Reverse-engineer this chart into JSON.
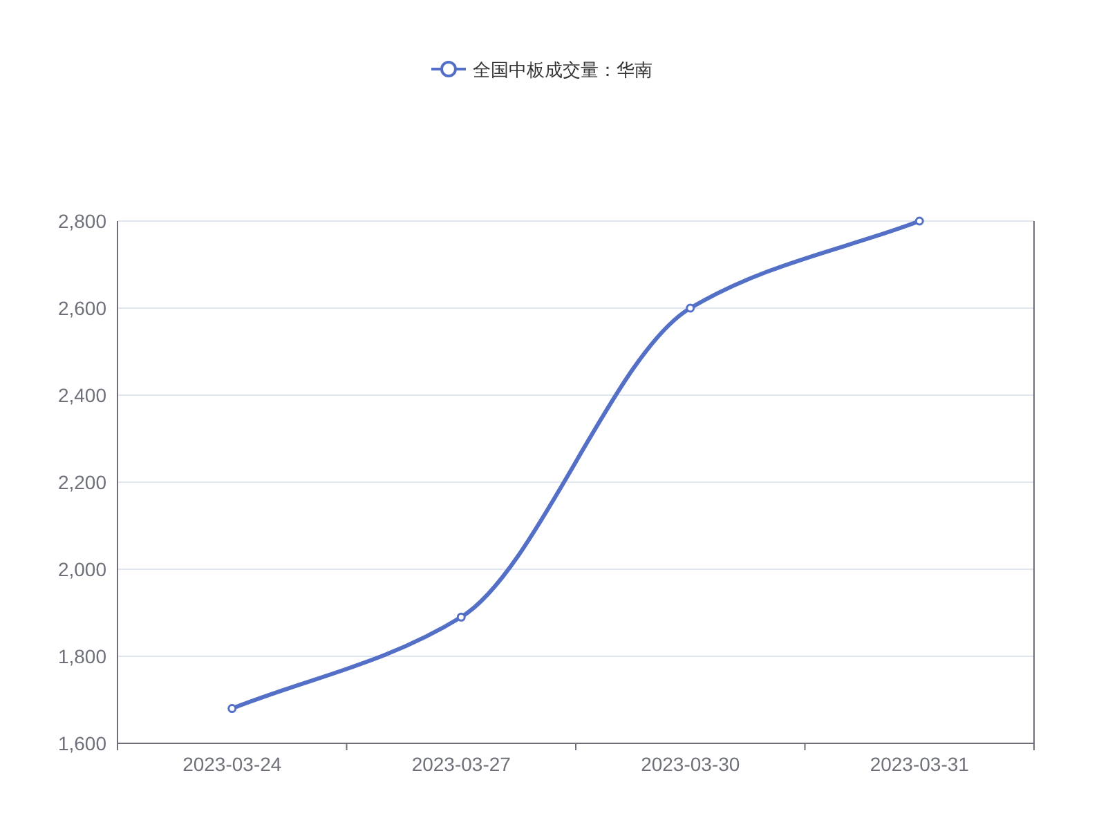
{
  "chart_data": {
    "type": "line",
    "categories": [
      "2023-03-24",
      "2023-03-27",
      "2023-03-30",
      "2023-03-31"
    ],
    "series": [
      {
        "name": "全国中板成交量：华南",
        "color": "#5470c6",
        "values": [
          1680,
          1890,
          2600,
          2800
        ]
      }
    ],
    "ylim": [
      1600,
      2800
    ],
    "yticks": [
      {
        "value": 1600,
        "label": "1,600"
      },
      {
        "value": 1800,
        "label": "1,800"
      },
      {
        "value": 2000,
        "label": "2,000"
      },
      {
        "value": 2200,
        "label": "2,200"
      },
      {
        "value": 2400,
        "label": "2,400"
      },
      {
        "value": 2600,
        "label": "2,600"
      },
      {
        "value": 2800,
        "label": "2,800"
      }
    ],
    "grid": "y",
    "legend": "top",
    "marker": "circle",
    "line_style": "solid"
  }
}
